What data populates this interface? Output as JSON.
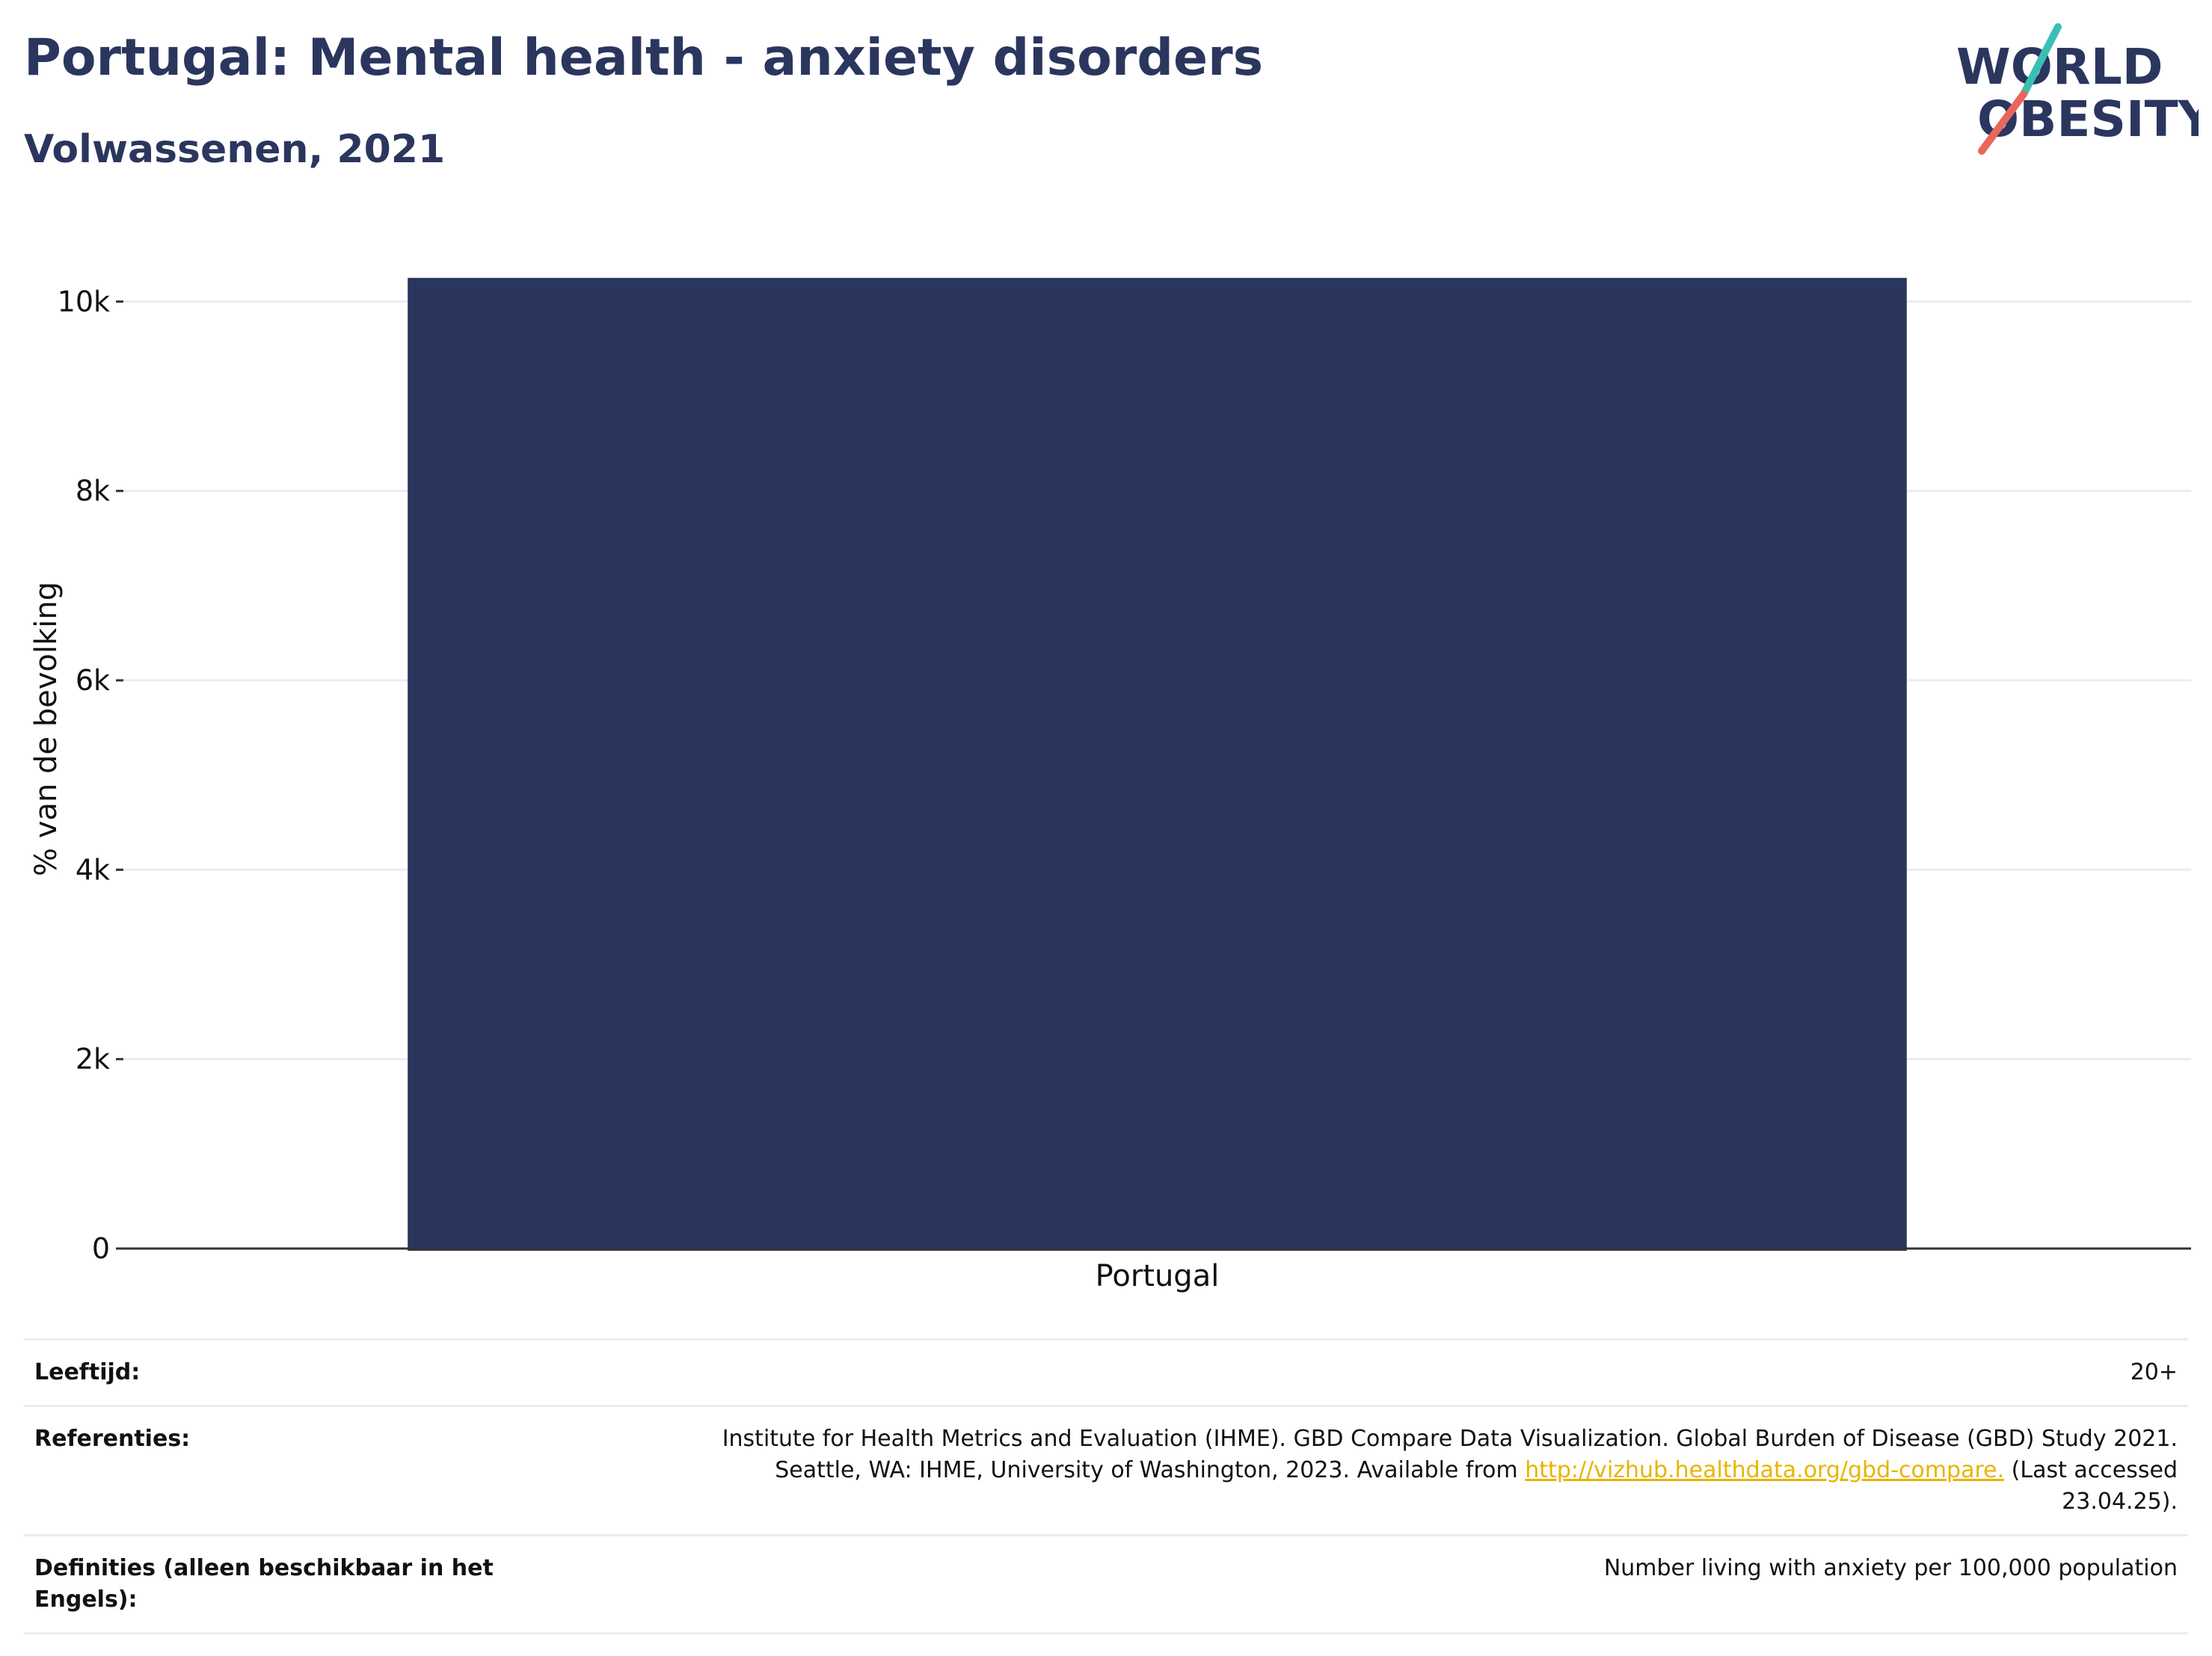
{
  "header": {
    "title": "Portugal: Mental health - anxiety disorders",
    "subtitle": "Volwassenen, 2021"
  },
  "logo": {
    "line1": "WORLD",
    "line2": "OBESITY",
    "colors": {
      "navy": "#2b365f",
      "teal": "#3bbfb5",
      "coral": "#e8675a"
    }
  },
  "chart_data": {
    "type": "bar",
    "categories": [
      "Portugal"
    ],
    "values": [
      10250
    ],
    "ylabel": "% van de bevolking",
    "ylim": [
      0,
      10500
    ],
    "yticks": [
      0,
      2000,
      4000,
      6000,
      8000,
      10000
    ],
    "ytick_labels": [
      "0",
      "2k",
      "4k",
      "6k",
      "8k",
      "10k"
    ],
    "grid": true,
    "bar_color": "#2b365f"
  },
  "info": {
    "age": {
      "label": "Leeftijd:",
      "value": "20+"
    },
    "references": {
      "label": "Referenties:",
      "text_line1": "Institute for Health Metrics and Evaluation (IHME). GBD Compare Data Visualization. Global Burden of Disease (GBD) Study 2021.",
      "text_line2_pre": "Seattle, WA: IHME, University of Washington, 2023. Available from ",
      "link": "http://vizhub.healthdata.org/gbd-compare.",
      "text_line2_post": " (Last accessed",
      "text_line3": "23.04.25)."
    },
    "definitions": {
      "label": "Definities (alleen beschikbaar in het Engels):",
      "value": "Number living with anxiety per 100,000 population"
    }
  }
}
